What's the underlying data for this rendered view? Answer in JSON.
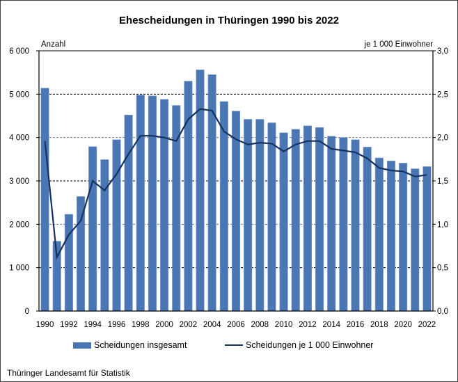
{
  "chart_data": {
    "type": "bar+line",
    "title": "Ehescheidungen in Thüringen 1990 bis 2022",
    "ylabel_left": "Anzahl",
    "ylabel_right": "je 1 000 Einwohner",
    "ylim_left": [
      0,
      6000
    ],
    "ylim_right": [
      0,
      3.0
    ],
    "yticks_left": [
      "0",
      "1 000",
      "2 000",
      "3 000",
      "4 000",
      "5 000",
      "6 000"
    ],
    "yticks_right": [
      "0,0",
      "0,5",
      "1,0",
      "1,5",
      "2,0",
      "2,5",
      "3,0"
    ],
    "xtick_labels": [
      "1990",
      "1992",
      "1994",
      "1996",
      "1998",
      "2000",
      "2002",
      "2004",
      "2006",
      "2008",
      "2010",
      "2012",
      "2014",
      "2016",
      "2018",
      "2020",
      "2022"
    ],
    "grid": true,
    "legend_position": "bottom",
    "categories": [
      1990,
      1991,
      1992,
      1993,
      1994,
      1995,
      1996,
      1997,
      1998,
      1999,
      2000,
      2001,
      2002,
      2003,
      2004,
      2005,
      2006,
      2007,
      2008,
      2009,
      2010,
      2011,
      2012,
      2013,
      2014,
      2015,
      2016,
      2017,
      2018,
      2019,
      2020,
      2021,
      2022
    ],
    "series": [
      {
        "name": "Scheidungen insgesamt",
        "type": "bar",
        "axis": "left",
        "color": "#4a76b4",
        "values": [
          5140,
          1610,
          2230,
          2640,
          3790,
          3490,
          3950,
          4520,
          4980,
          4960,
          4880,
          4740,
          5300,
          5560,
          5450,
          4830,
          4610,
          4420,
          4420,
          4340,
          4110,
          4190,
          4270,
          4230,
          4030,
          4000,
          3950,
          3780,
          3530,
          3460,
          3410,
          3280,
          3330
        ]
      },
      {
        "name": "Scheidungen je 1 000 Einwohner",
        "type": "line",
        "axis": "right",
        "color": "#15325f",
        "values": [
          1.96,
          0.62,
          0.88,
          1.04,
          1.5,
          1.39,
          1.58,
          1.81,
          2.02,
          2.02,
          2.0,
          1.96,
          2.21,
          2.33,
          2.31,
          2.07,
          1.98,
          1.92,
          1.94,
          1.93,
          1.84,
          1.92,
          1.96,
          1.96,
          1.87,
          1.85,
          1.83,
          1.76,
          1.65,
          1.62,
          1.61,
          1.55,
          1.57
        ]
      }
    ]
  },
  "source": "Thüringer Landesamt für Statistik"
}
